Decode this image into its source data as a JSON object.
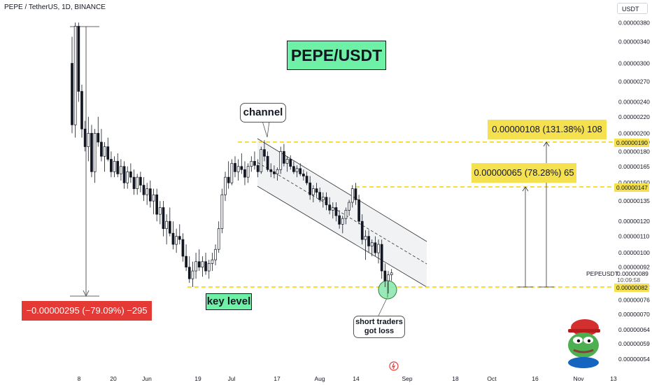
{
  "header": {
    "symbol_line": "PEPE / TetherUS, 1D, BINANCE",
    "currency_button": "USDT"
  },
  "title_badge": "PEPE/USDT",
  "annotations": {
    "channel": "channel",
    "key_level": "key level",
    "short_traders": "short traders got loss",
    "drop_measure": "−0.00000295 (−79.09%) −295",
    "target1_measure": "0.00000065 (78.28%) 65",
    "target2_measure": "0.00000108 (131.38%) 108",
    "symbol_tag": "PEPEUSDT",
    "last_price": "0.00000089",
    "countdown": "10:09:58"
  },
  "price_tags": {
    "level_190": "0.00000190",
    "level_147": "0.00000147",
    "level_082": "0.00000082"
  },
  "colors": {
    "up": "#131722",
    "down": "#131722",
    "level_line": "#f5d000",
    "label_yellow": "#f5e04f",
    "label_red": "#e53935",
    "badge_green": "#6ef0a7",
    "channel_fill": "#e8e9ec"
  },
  "chart_data": {
    "type": "candlestick",
    "title": "PEPE/USDT",
    "interval": "1D",
    "exchange": "BINANCE",
    "y_axis": {
      "scale": "log",
      "ticks": [
        "0.00000054",
        "0.00000059",
        "0.00000064",
        "0.00000070",
        "0.00000076",
        "0.00000082",
        "0.00000092",
        "0.00000100",
        "0.00000110",
        "0.00000120",
        "0.00000135",
        "0.00000150",
        "0.00000165",
        "0.00000180",
        "0.00000190",
        "0.00000200",
        "0.00000220",
        "0.00000240",
        "0.00000270",
        "0.00000300",
        "0.00000340",
        "0.00000380"
      ]
    },
    "x_axis": {
      "ticks": [
        "8",
        "20",
        "Jun",
        "19",
        "Jul",
        "17",
        "Aug",
        "14",
        "Sep",
        "18",
        "Oct",
        "16",
        "Nov",
        "13"
      ]
    },
    "key_levels": [
      1.9e-06,
      1.47e-06,
      8.2e-07
    ],
    "measures": [
      {
        "label": "−0.00000295 (−79.09%) −295",
        "from": 3.73e-06,
        "to": 7.8e-07
      },
      {
        "label": "0.00000065 (78.28%) 65",
        "from": 8.2e-07,
        "to": 1.47e-06
      },
      {
        "label": "0.00000108 (131.38%) 108",
        "from": 8.2e-07,
        "to": 1.9e-06
      }
    ],
    "candles": [
      [
        3.0,
        3.5,
        2.0,
        2.1
      ],
      [
        2.1,
        3.8,
        1.95,
        3.72
      ],
      [
        3.72,
        3.8,
        2.4,
        2.55
      ],
      [
        2.55,
        2.65,
        1.95,
        2.05
      ],
      [
        2.05,
        2.15,
        1.8,
        1.85
      ],
      [
        1.85,
        2.2,
        1.7,
        2.0
      ],
      [
        2.0,
        2.1,
        1.55,
        1.6
      ],
      [
        1.6,
        2.05,
        1.5,
        2.0
      ],
      [
        2.0,
        2.2,
        1.85,
        1.9
      ],
      [
        1.9,
        2.05,
        1.7,
        1.75
      ],
      [
        1.75,
        1.9,
        1.6,
        1.85
      ],
      [
        1.85,
        1.95,
        1.7,
        1.72
      ],
      [
        1.72,
        1.8,
        1.55,
        1.6
      ],
      [
        1.6,
        1.75,
        1.55,
        1.7
      ],
      [
        1.7,
        1.78,
        1.55,
        1.58
      ],
      [
        1.58,
        1.72,
        1.52,
        1.65
      ],
      [
        1.65,
        1.7,
        1.45,
        1.5
      ],
      [
        1.5,
        1.65,
        1.45,
        1.6
      ],
      [
        1.6,
        1.68,
        1.5,
        1.55
      ],
      [
        1.55,
        1.62,
        1.4,
        1.45
      ],
      [
        1.45,
        1.58,
        1.4,
        1.55
      ],
      [
        1.55,
        1.6,
        1.42,
        1.48
      ],
      [
        1.48,
        1.55,
        1.35,
        1.4
      ],
      [
        1.4,
        1.5,
        1.32,
        1.45
      ],
      [
        1.45,
        1.52,
        1.3,
        1.35
      ],
      [
        1.35,
        1.45,
        1.25,
        1.4
      ],
      [
        1.4,
        1.45,
        1.2,
        1.25
      ],
      [
        1.25,
        1.35,
        1.18,
        1.3
      ],
      [
        1.3,
        1.35,
        1.1,
        1.15
      ],
      [
        1.15,
        1.25,
        1.05,
        1.2
      ],
      [
        1.2,
        1.3,
        1.1,
        1.12
      ],
      [
        1.12,
        1.2,
        1.02,
        1.05
      ],
      [
        1.05,
        1.15,
        1.0,
        1.1
      ],
      [
        1.1,
        1.18,
        1.05,
        1.08
      ],
      [
        1.08,
        1.12,
        0.95,
        0.98
      ],
      [
        0.98,
        1.05,
        0.9,
        0.92
      ],
      [
        0.92,
        0.98,
        0.84,
        0.86
      ],
      [
        0.86,
        0.95,
        0.82,
        0.9
      ],
      [
        0.9,
        1.0,
        0.86,
        0.95
      ],
      [
        0.95,
        1.02,
        0.9,
        0.92
      ],
      [
        0.92,
        0.98,
        0.87,
        0.95
      ],
      [
        0.95,
        1.0,
        0.88,
        0.9
      ],
      [
        0.9,
        0.96,
        0.86,
        0.94
      ],
      [
        0.94,
        1.0,
        0.9,
        0.96
      ],
      [
        0.96,
        1.05,
        0.93,
        1.02
      ],
      [
        1.02,
        1.2,
        1.0,
        1.15
      ],
      [
        1.15,
        1.45,
        1.12,
        1.4
      ],
      [
        1.4,
        1.6,
        1.35,
        1.55
      ],
      [
        1.55,
        1.7,
        1.45,
        1.5
      ],
      [
        1.5,
        1.72,
        1.48,
        1.68
      ],
      [
        1.68,
        1.75,
        1.55,
        1.6
      ],
      [
        1.6,
        1.72,
        1.52,
        1.65
      ],
      [
        1.65,
        1.78,
        1.58,
        1.62
      ],
      [
        1.62,
        1.7,
        1.48,
        1.55
      ],
      [
        1.55,
        1.68,
        1.5,
        1.65
      ],
      [
        1.65,
        1.75,
        1.6,
        1.7
      ],
      [
        1.7,
        1.8,
        1.62,
        1.66
      ],
      [
        1.66,
        1.72,
        1.55,
        1.6
      ],
      [
        1.6,
        1.85,
        1.58,
        1.82
      ],
      [
        1.82,
        1.92,
        1.7,
        1.75
      ],
      [
        1.75,
        1.8,
        1.6,
        1.62
      ],
      [
        1.62,
        1.68,
        1.55,
        1.6
      ],
      [
        1.6,
        1.66,
        1.54,
        1.58
      ],
      [
        1.58,
        1.64,
        1.52,
        1.62
      ],
      [
        1.62,
        1.85,
        1.58,
        1.8
      ],
      [
        1.8,
        1.88,
        1.65,
        1.68
      ],
      [
        1.68,
        1.75,
        1.6,
        1.72
      ],
      [
        1.72,
        1.76,
        1.62,
        1.65
      ],
      [
        1.65,
        1.7,
        1.58,
        1.6
      ],
      [
        1.6,
        1.66,
        1.55,
        1.63
      ],
      [
        1.63,
        1.68,
        1.56,
        1.58
      ],
      [
        1.58,
        1.62,
        1.52,
        1.56
      ],
      [
        1.56,
        1.6,
        1.48,
        1.5
      ],
      [
        1.5,
        1.56,
        1.36,
        1.4
      ],
      [
        1.4,
        1.48,
        1.34,
        1.45
      ],
      [
        1.45,
        1.5,
        1.38,
        1.42
      ],
      [
        1.42,
        1.46,
        1.34,
        1.36
      ],
      [
        1.36,
        1.42,
        1.3,
        1.38
      ],
      [
        1.38,
        1.42,
        1.28,
        1.32
      ],
      [
        1.32,
        1.38,
        1.25,
        1.28
      ],
      [
        1.28,
        1.34,
        1.22,
        1.3
      ],
      [
        1.3,
        1.34,
        1.2,
        1.24
      ],
      [
        1.24,
        1.28,
        1.15,
        1.18
      ],
      [
        1.18,
        1.24,
        1.12,
        1.22
      ],
      [
        1.22,
        1.3,
        1.18,
        1.28
      ],
      [
        1.28,
        1.36,
        1.24,
        1.34
      ],
      [
        1.34,
        1.48,
        1.3,
        1.45
      ],
      [
        1.45,
        1.5,
        1.32,
        1.36
      ],
      [
        1.36,
        1.4,
        1.18,
        1.2
      ],
      [
        1.2,
        1.25,
        1.05,
        1.08
      ],
      [
        1.08,
        1.14,
        0.96,
        1.1
      ],
      [
        1.1,
        1.14,
        1.0,
        1.04
      ],
      [
        1.04,
        1.08,
        0.98,
        1.06
      ],
      [
        1.06,
        1.1,
        0.98,
        1.0
      ],
      [
        1.0,
        1.08,
        0.94,
        1.05
      ],
      [
        1.05,
        1.08,
        0.86,
        0.9
      ],
      [
        0.9,
        0.94,
        0.82,
        0.85
      ],
      [
        0.85,
        0.9,
        0.79,
        0.88
      ],
      [
        0.88,
        0.91,
        0.85,
        0.89
      ]
    ]
  }
}
